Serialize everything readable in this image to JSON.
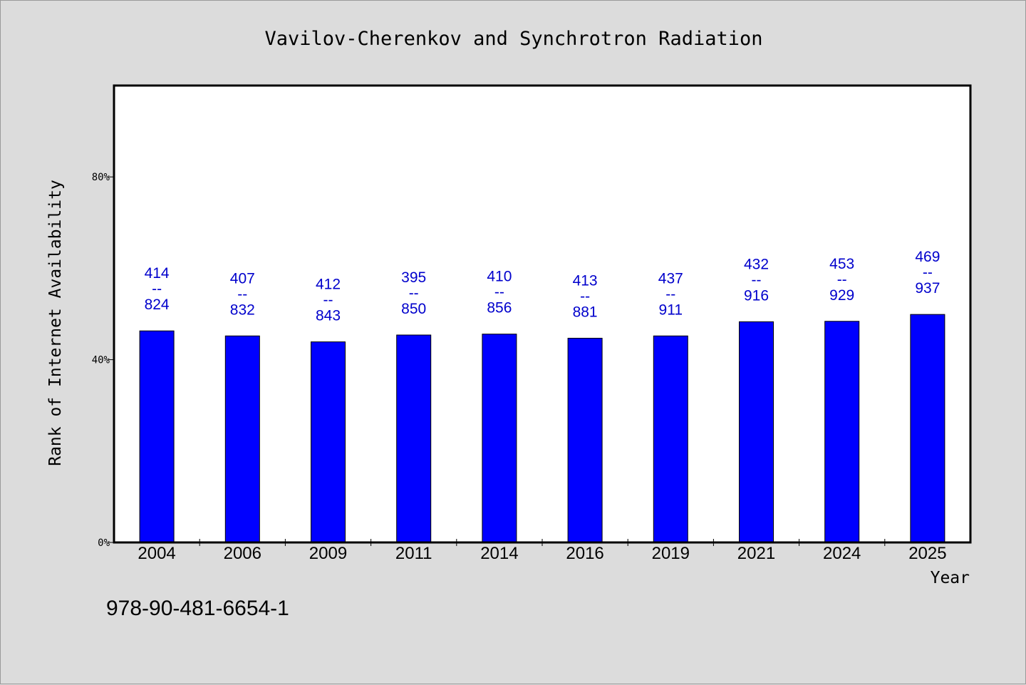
{
  "chart_data": {
    "type": "bar",
    "title": "Vavilov-Cherenkov and Synchrotron Radiation",
    "xlabel": "Year",
    "ylabel": "Rank of Internet Availability",
    "categories": [
      "2004",
      "2006",
      "2009",
      "2011",
      "2014",
      "2016",
      "2019",
      "2021",
      "2024",
      "2025"
    ],
    "series": [
      {
        "values": [
          46.3,
          45.2,
          43.9,
          45.4,
          45.6,
          44.7,
          45.2,
          48.3,
          48.4,
          49.9
        ],
        "color": "#0000ff"
      }
    ],
    "data_labels": [
      {
        "top": "414",
        "sep": "--",
        "bottom": "824"
      },
      {
        "top": "407",
        "sep": "--",
        "bottom": "832"
      },
      {
        "top": "412",
        "sep": "--",
        "bottom": "843"
      },
      {
        "top": "395",
        "sep": "--",
        "bottom": "850"
      },
      {
        "top": "410",
        "sep": "--",
        "bottom": "856"
      },
      {
        "top": "413",
        "sep": "--",
        "bottom": "881"
      },
      {
        "top": "437",
        "sep": "--",
        "bottom": "911"
      },
      {
        "top": "432",
        "sep": "--",
        "bottom": "916"
      },
      {
        "top": "453",
        "sep": "--",
        "bottom": "929"
      },
      {
        "top": "469",
        "sep": "--",
        "bottom": "937"
      }
    ],
    "yticks": [
      {
        "value": 0,
        "label": "0%"
      },
      {
        "value": 40,
        "label": "40%"
      },
      {
        "value": 80,
        "label": "80%"
      }
    ],
    "ylim": [
      0,
      100
    ],
    "grid": false,
    "legend": "none"
  },
  "footer": {
    "isbn": "978-90-481-6654-1"
  }
}
